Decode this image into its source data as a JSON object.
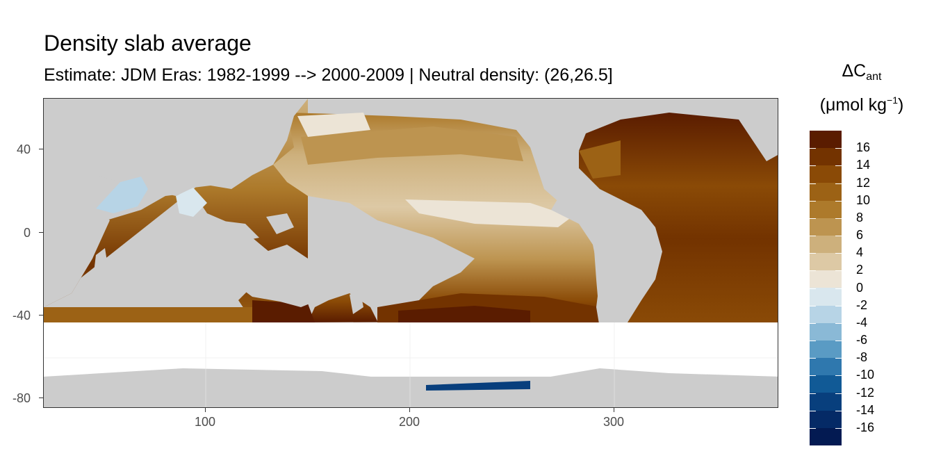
{
  "title": "Density slab average",
  "subtitle": "Estimate: JDM Eras: 1982-1999 --> 2000-2009 | Neutral density: (26,26.5]",
  "legend": {
    "title_main": "ΔC",
    "title_sub": "ant",
    "unit_prefix": "(μmol kg",
    "unit_sup": "−1",
    "unit_suffix": ")",
    "labels": [
      "16",
      "14",
      "12",
      "10",
      "8",
      "6",
      "4",
      "2",
      "0",
      "-2",
      "-4",
      "-6",
      "-8",
      "-10",
      "-12",
      "-14",
      "-16"
    ],
    "colors": [
      "#5a1c00",
      "#733300",
      "#8a4a06",
      "#9c6215",
      "#ad7a2b",
      "#bd9450",
      "#cdb07c",
      "#ddc9a5",
      "#ece4d6",
      "#d9e7ee",
      "#b7d4e6",
      "#8ab9d6",
      "#5a9bc4",
      "#2f78ae",
      "#115a96",
      "#083f7d",
      "#052a66",
      "#031a52"
    ]
  },
  "axes": {
    "x_ticks": [
      "100",
      "200",
      "300"
    ],
    "y_ticks": [
      "40",
      "0",
      "-40",
      "-80"
    ],
    "x_range": [
      20,
      380
    ],
    "y_range": [
      -85,
      65
    ]
  },
  "colors": {
    "land": "#cccccc",
    "no_data": "#ffffff",
    "grid": "#ebebeb"
  }
}
